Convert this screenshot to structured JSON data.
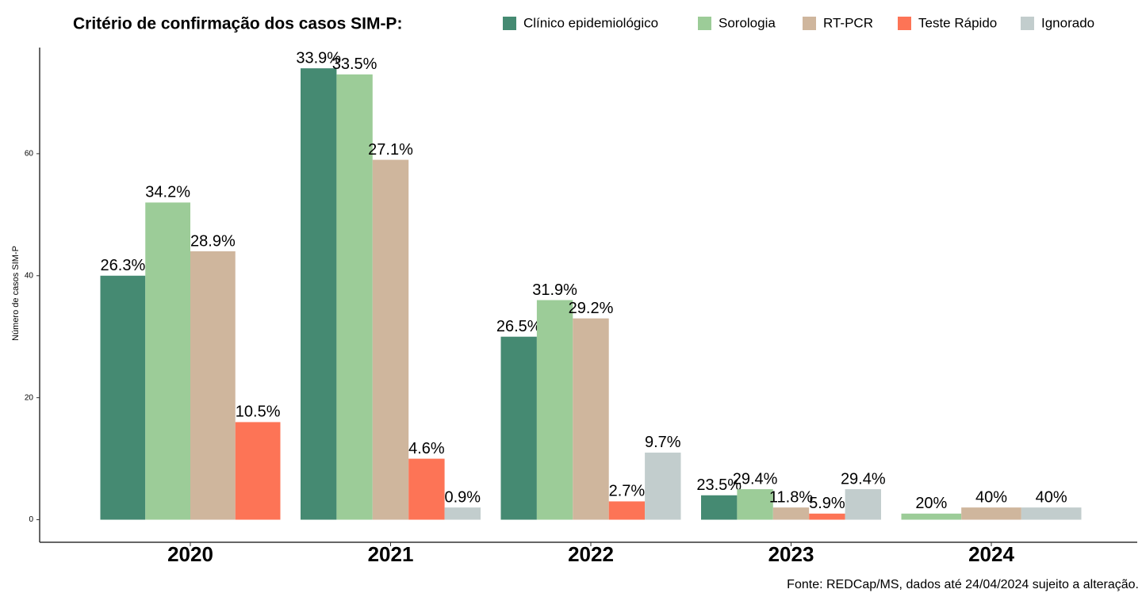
{
  "chart_data": {
    "type": "bar",
    "title": "Critério de confirmação dos casos SIM-P:",
    "y_label": "Número de casos SIM-P",
    "caption": "Fonte: REDCap/MS, dados até 24/04/2024 sujeito a alteração.",
    "categories": [
      "2020",
      "2021",
      "2022",
      "2023",
      "2024"
    ],
    "series": [
      {
        "name": "Clínico epidemiológico",
        "color": "#458a72",
        "values": [
          40,
          74,
          30,
          4,
          null
        ],
        "value_labels": [
          "26.3%",
          "33.9%",
          "26.5%",
          "23.5%",
          null
        ]
      },
      {
        "name": "Sorologia",
        "color": "#9ccc98",
        "values": [
          52,
          73,
          36,
          5,
          1
        ],
        "value_labels": [
          "34.2%",
          "33.5%",
          "31.9%",
          "29.4%",
          "20%"
        ]
      },
      {
        "name": "RT-PCR",
        "color": "#cfb69d",
        "values": [
          44,
          59,
          33,
          2,
          2
        ],
        "value_labels": [
          "28.9%",
          "27.1%",
          "29.2%",
          "11.8%",
          "40%"
        ]
      },
      {
        "name": "Teste Rápido",
        "color": "#fd7456",
        "values": [
          16,
          10,
          3,
          1,
          null
        ],
        "value_labels": [
          "10.5%",
          "4.6%",
          "2.7%",
          "5.9%",
          null
        ]
      },
      {
        "name": "Ignorado",
        "color": "#c2cdcd",
        "values": [
          null,
          2,
          11,
          5,
          2
        ],
        "value_labels": [
          null,
          "0.9%",
          "9.7%",
          "29.4%",
          "40%"
        ]
      }
    ],
    "ylim": [
      -3.7,
      77.4
    ],
    "yticks": [
      0,
      20,
      40,
      60
    ],
    "grid": false,
    "legend": "top"
  }
}
